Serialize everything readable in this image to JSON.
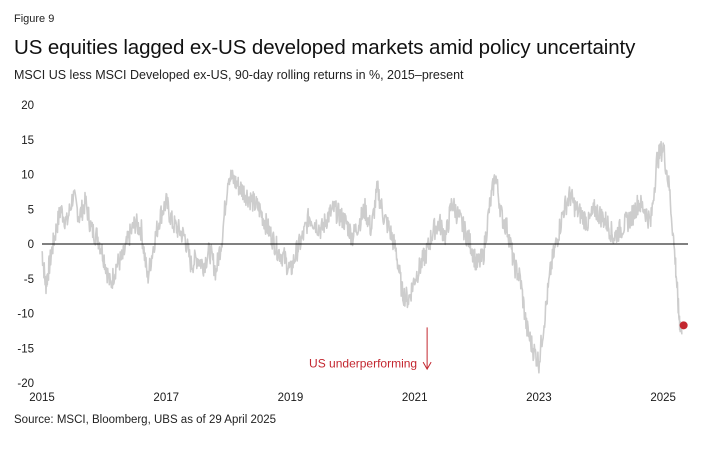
{
  "figure": {
    "label": "Figure 9",
    "title": "US equities lagged ex-US developed markets amid policy uncertainty",
    "subtitle": "MSCI US less MSCI Developed ex-US, 90-day rolling returns in %, 2015–present",
    "source": "Source: MSCI, Bloomberg, UBS as of 29 April 2025"
  },
  "colors": {
    "series": "#cdcdcd",
    "zero_line": "#000000",
    "accent": "#c3262f",
    "text": "#1a1a1a"
  },
  "chart_data": {
    "type": "line",
    "title": "US equities lagged ex-US developed markets amid policy uncertainty",
    "subtitle": "MSCI US less MSCI Developed ex-US, 90-day rolling returns in %, 2015–present",
    "xlabel": "",
    "ylabel": "",
    "xlim": [
      2015,
      2025.4
    ],
    "ylim": [
      -20,
      20
    ],
    "x_ticks": [
      2015,
      2017,
      2019,
      2021,
      2023,
      2025
    ],
    "x_tick_labels": [
      "2015",
      "2017",
      "2019",
      "2021",
      "2023",
      "2025"
    ],
    "y_ticks": [
      20,
      15,
      10,
      5,
      0,
      -5,
      -10,
      -15,
      -20
    ],
    "y_tick_labels": [
      "20",
      "15",
      "10",
      "5",
      "0",
      "-5",
      "-10",
      "-15",
      "-20"
    ],
    "grid": false,
    "reference_line": 0,
    "series": [
      {
        "name": "MSCI US less MSCI Developed ex-US",
        "x": [
          2015.0,
          2015.06,
          2015.12,
          2015.2,
          2015.3,
          2015.4,
          2015.5,
          2015.6,
          2015.7,
          2015.8,
          2015.9,
          2016.0,
          2016.1,
          2016.2,
          2016.3,
          2016.4,
          2016.5,
          2016.6,
          2016.7,
          2016.8,
          2016.9,
          2017.0,
          2017.1,
          2017.2,
          2017.3,
          2017.4,
          2017.5,
          2017.6,
          2017.7,
          2017.8,
          2017.9,
          2018.0,
          2018.1,
          2018.2,
          2018.3,
          2018.4,
          2018.5,
          2018.6,
          2018.7,
          2018.8,
          2018.9,
          2019.0,
          2019.1,
          2019.2,
          2019.3,
          2019.4,
          2019.5,
          2019.6,
          2019.7,
          2019.8,
          2019.9,
          2020.0,
          2020.1,
          2020.2,
          2020.3,
          2020.4,
          2020.5,
          2020.6,
          2020.7,
          2020.8,
          2020.9,
          2021.0,
          2021.1,
          2021.2,
          2021.3,
          2021.4,
          2021.5,
          2021.6,
          2021.7,
          2021.8,
          2021.9,
          2022.0,
          2022.1,
          2022.2,
          2022.3,
          2022.4,
          2022.5,
          2022.6,
          2022.7,
          2022.8,
          2022.9,
          2023.0,
          2023.1,
          2023.2,
          2023.3,
          2023.4,
          2023.5,
          2023.6,
          2023.7,
          2023.8,
          2023.9,
          2024.0,
          2024.1,
          2024.2,
          2024.3,
          2024.4,
          2024.5,
          2024.6,
          2024.7,
          2024.8,
          2024.9,
          2025.0,
          2025.1,
          2025.2,
          2025.25,
          2025.3
        ],
        "values": [
          -1,
          -6,
          -3,
          1,
          5,
          3,
          7,
          4,
          6,
          2,
          1,
          -2,
          -6,
          -3,
          -2,
          1,
          3,
          2,
          -5,
          0,
          4,
          6,
          3,
          2,
          1,
          -3,
          -2,
          -3,
          -1,
          -4,
          1,
          10,
          9,
          8,
          7,
          6,
          5,
          3,
          1,
          -1,
          -2,
          -4,
          -1,
          1,
          4,
          3,
          2,
          4,
          5,
          4,
          3,
          1,
          3,
          5,
          2,
          8,
          4,
          2,
          -1,
          -7,
          -8,
          -5,
          -3,
          -1,
          2,
          3,
          1,
          6,
          4,
          2,
          0,
          -3,
          -2,
          5,
          10,
          4,
          2,
          -3,
          -5,
          -12,
          -15,
          -17,
          -10,
          -3,
          1,
          5,
          7,
          5,
          4,
          3,
          5,
          4,
          3,
          1,
          2,
          3,
          4,
          6,
          5,
          3,
          12,
          14,
          8,
          -3,
          -10,
          -13
        ]
      }
    ],
    "highlight_point": {
      "x": 2025.33,
      "y": -11.7
    },
    "annotations": [
      {
        "text": "US underperforming",
        "x": 2021.2,
        "y": -17.5,
        "arrow_from": -12,
        "arrow_to": -18
      }
    ]
  }
}
